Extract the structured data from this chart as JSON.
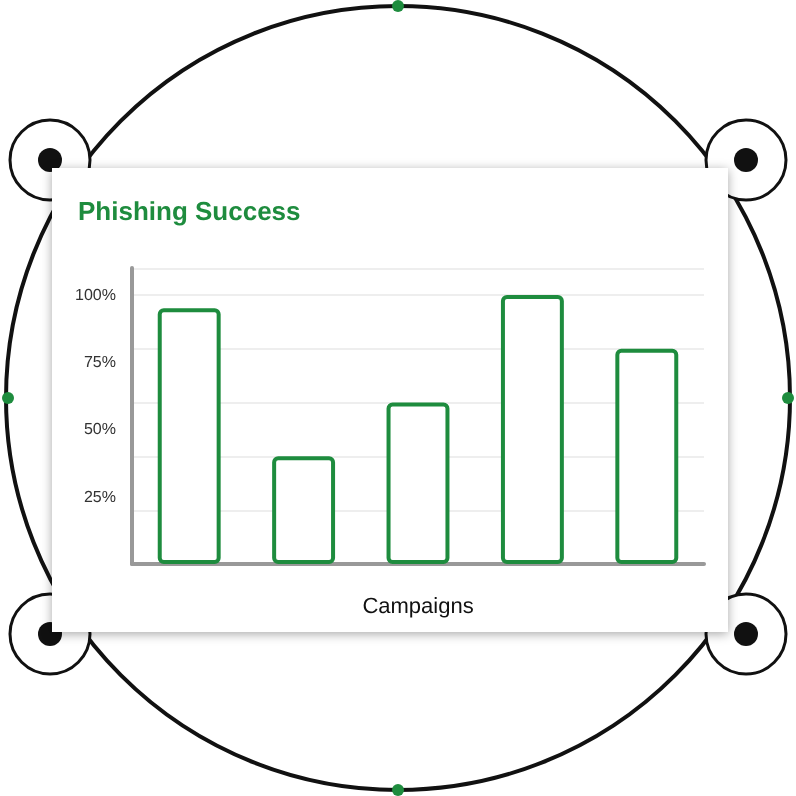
{
  "chart_data": {
    "type": "bar",
    "title": "Phishing Success",
    "xlabel": "Campaigns",
    "categories": [
      null,
      null,
      null,
      null,
      null
    ],
    "values": [
      95,
      40,
      60,
      100,
      80
    ],
    "color": "#1e8c3e",
    "ylim": [
      0,
      110
    ],
    "yticks": [
      {
        "value": 25,
        "label": "25%"
      },
      {
        "value": 50,
        "label": "50%"
      },
      {
        "value": 75,
        "label": "75%"
      },
      {
        "value": 100,
        "label": "100%"
      }
    ],
    "grid": "y"
  }
}
